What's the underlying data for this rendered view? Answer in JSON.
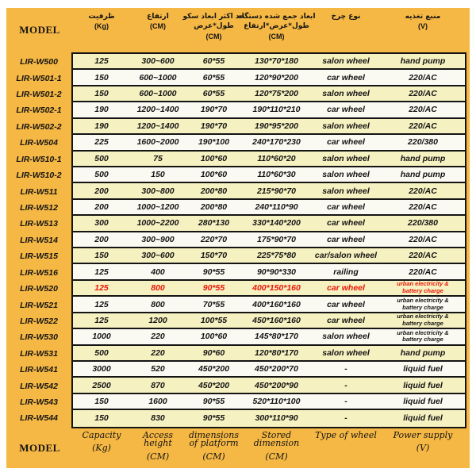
{
  "model_label_top": "MODEL",
  "model_label_bottom": "MODEL",
  "colors": {
    "panel_orange": "#f6b844",
    "row_yellow": "#f6f1c0",
    "row_white": "#fbfaf2",
    "border_black": "#141414",
    "highlight_red": "#ea1509"
  },
  "header": {
    "columns": [
      {
        "key": "capacity",
        "lines": [
          "ظرفیت",
          "(Kg)"
        ]
      },
      {
        "key": "height",
        "lines": [
          "ارتفاع",
          "(CM)"
        ]
      },
      {
        "key": "platform",
        "lines": [
          "حد اکثر ابعاد سکو",
          "طول*عرض",
          "(CM)"
        ]
      },
      {
        "key": "stored",
        "lines": [
          "ابعاد جمع شده دستگاه",
          "طول*عرض*ارتفاع",
          "(CM)"
        ]
      },
      {
        "key": "wheel",
        "lines": [
          "نوع چرخ"
        ]
      },
      {
        "key": "power",
        "lines": [
          "منبع تغذیه",
          "(V)"
        ]
      }
    ]
  },
  "footer": {
    "columns": [
      {
        "key": "capacity",
        "label": "Capacity",
        "unit": "(Kg)"
      },
      {
        "key": "height",
        "label": "Access height",
        "unit": "(CM)"
      },
      {
        "key": "platform",
        "label": "dimensions of platform",
        "unit": "(CM)"
      },
      {
        "key": "stored",
        "label": "Stored dimension",
        "unit": "(CM)"
      },
      {
        "key": "wheel",
        "label": "Type of wheel",
        "unit": ""
      },
      {
        "key": "power",
        "label": "Power supply",
        "unit": "(V)"
      }
    ]
  },
  "table": {
    "rows": [
      {
        "model": "LIR-W500",
        "capacity": "125",
        "height": "300~600",
        "platform": "60*55",
        "stored": "130*70*180",
        "wheel": "salon wheel",
        "power": "hand pump",
        "highlight": false
      },
      {
        "model": "LIR-W501-1",
        "capacity": "150",
        "height": "600~1000",
        "platform": "60*55",
        "stored": "120*90*200",
        "wheel": "car wheel",
        "power": "220/AC",
        "highlight": false
      },
      {
        "model": "LIR-W501-2",
        "capacity": "150",
        "height": "600~1000",
        "platform": "60*55",
        "stored": "120*75*200",
        "wheel": "salon wheel",
        "power": "220/AC",
        "highlight": false
      },
      {
        "model": "LIR-W502-1",
        "capacity": "190",
        "height": "1200~1400",
        "platform": "190*70",
        "stored": "190*110*210",
        "wheel": "car wheel",
        "power": "220/AC",
        "highlight": false
      },
      {
        "model": "LIR-W502-2",
        "capacity": "190",
        "height": "1200~1400",
        "platform": "190*70",
        "stored": "190*95*200",
        "wheel": "salon wheel",
        "power": "220/AC",
        "highlight": false
      },
      {
        "model": "LIR-W504",
        "capacity": "225",
        "height": "1600~2000",
        "platform": "190*100",
        "stored": "240*170*230",
        "wheel": "car wheel",
        "power": "220/380",
        "highlight": false
      },
      {
        "model": "LIR-W510-1",
        "capacity": "500",
        "height": "75",
        "platform": "100*60",
        "stored": "110*60*20",
        "wheel": "salon wheel",
        "power": "hand pump",
        "highlight": false
      },
      {
        "model": "LIR-W510-2",
        "capacity": "500",
        "height": "150",
        "platform": "100*60",
        "stored": "110*60*30",
        "wheel": "salon wheel",
        "power": "hand pump",
        "highlight": false
      },
      {
        "model": "LIR-W511",
        "capacity": "200",
        "height": "300~800",
        "platform": "200*80",
        "stored": "215*90*70",
        "wheel": "salon wheel",
        "power": "220/AC",
        "highlight": false
      },
      {
        "model": "LIR-W512",
        "capacity": "200",
        "height": "1000~1200",
        "platform": "200*80",
        "stored": "240*110*90",
        "wheel": "car wheel",
        "power": "220/AC",
        "highlight": false
      },
      {
        "model": "LIR-W513",
        "capacity": "300",
        "height": "1000~2200",
        "platform": "280*130",
        "stored": "330*140*200",
        "wheel": "car wheel",
        "power": "220/380",
        "highlight": false
      },
      {
        "model": "LIR-W514",
        "capacity": "200",
        "height": "300~900",
        "platform": "220*70",
        "stored": "175*90*70",
        "wheel": "car wheel",
        "power": "220/AC",
        "highlight": false
      },
      {
        "model": "LIR-W515",
        "capacity": "150",
        "height": "300~600",
        "platform": "150*70",
        "stored": "225*75*80",
        "wheel": "car/salon wheel",
        "power": "220/AC",
        "highlight": false
      },
      {
        "model": "LIR-W516",
        "capacity": "125",
        "height": "400",
        "platform": "90*55",
        "stored": "90*90*330",
        "wheel": "railing",
        "power": "220/AC",
        "highlight": false
      },
      {
        "model": "LIR-W520",
        "capacity": "125",
        "height": "800",
        "platform": "90*55",
        "stored": "400*150*160",
        "wheel": "car wheel",
        "power": "urban electricity & battery charge",
        "highlight": true
      },
      {
        "model": "LIR-W521",
        "capacity": "125",
        "height": "800",
        "platform": "70*55",
        "stored": "400*160*160",
        "wheel": "car wheel",
        "power": "urban electricity & battery charge",
        "highlight": false
      },
      {
        "model": "LIR-W522",
        "capacity": "125",
        "height": "1200",
        "platform": "100*55",
        "stored": "450*160*160",
        "wheel": "car wheel",
        "power": "urban electricity & battery charge",
        "highlight": false
      },
      {
        "model": "LIR-W530",
        "capacity": "1000",
        "height": "220",
        "platform": "100*60",
        "stored": "145*80*170",
        "wheel": "salon wheel",
        "power": "urban electricity & battery charge",
        "highlight": false
      },
      {
        "model": "LIR-W531",
        "capacity": "500",
        "height": "220",
        "platform": "90*60",
        "stored": "120*80*170",
        "wheel": "salon wheel",
        "power": "hand pump",
        "highlight": false
      },
      {
        "model": "LIR-W541",
        "capacity": "3000",
        "height": "520",
        "platform": "450*200",
        "stored": "450*200*70",
        "wheel": "-",
        "power": "liquid fuel",
        "highlight": false
      },
      {
        "model": "LIR-W542",
        "capacity": "2500",
        "height": "870",
        "platform": "450*200",
        "stored": "450*200*90",
        "wheel": "-",
        "power": "liquid fuel",
        "highlight": false
      },
      {
        "model": "LIR-W543",
        "capacity": "150",
        "height": "1600",
        "platform": "90*55",
        "stored": "520*110*100",
        "wheel": "-",
        "power": "liquid fuel",
        "highlight": false
      },
      {
        "model": "LIR-W544",
        "capacity": "150",
        "height": "830",
        "platform": "90*55",
        "stored": "300*110*90",
        "wheel": "-",
        "power": "liquid fuel",
        "highlight": false
      }
    ]
  }
}
